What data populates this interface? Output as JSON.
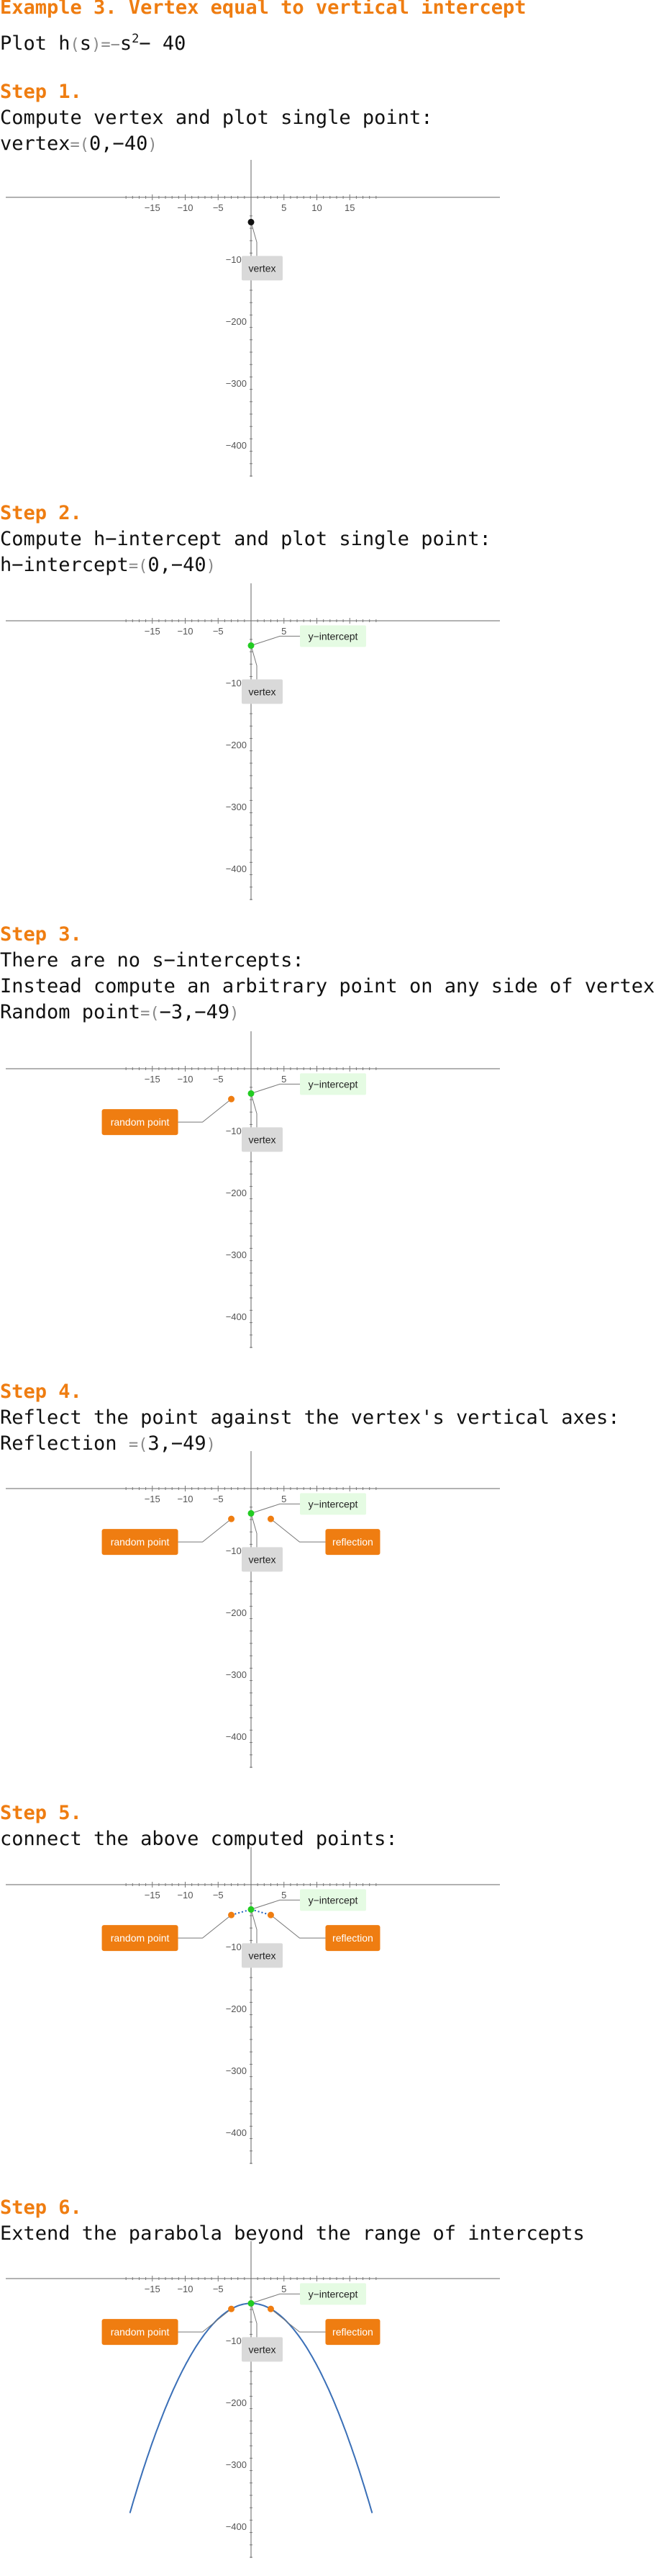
{
  "title": "Example 3. Vertex equal to vertical intercept",
  "intro": {
    "prefix": "Plot h",
    "open": "(",
    "var": "s",
    "close": ")",
    "eq": "=",
    "minus": "−",
    "base": "s",
    "exp": "2",
    "rest": "− 40"
  },
  "steps": [
    {
      "heading": "Step 1.",
      "lines": [
        "Compute vertex and plot single point:"
      ],
      "result": {
        "label": "vertex",
        "eq": "=",
        "open": "(",
        "body": "0,−40",
        "close": ")"
      }
    },
    {
      "heading": "Step 2.",
      "lines": [
        "Compute h−intercept and plot single point:"
      ],
      "result": {
        "label": "h−intercept",
        "eq": "=",
        "open": "(",
        "body": "0,−40",
        "close": ")"
      }
    },
    {
      "heading": "Step 3.",
      "lines": [
        "There are no s−intercepts:",
        "Instead compute an arbitrary point on any side of vertex:"
      ],
      "result": {
        "label": "Random point",
        "eq": "=",
        "open": "(",
        "body": "−3,−49",
        "close": ")"
      }
    },
    {
      "heading": "Step 4.",
      "lines": [
        "Reflect the point against the vertex's vertical axes:"
      ],
      "result": {
        "label": "Reflection ",
        "eq": "=",
        "open": "(",
        "body": "3,−49",
        "close": ")"
      }
    },
    {
      "heading": "Step 5.",
      "lines": [
        "connect the above computed points:"
      ],
      "result": null
    },
    {
      "heading": "Step 6.",
      "lines": [
        "Extend the parabola beyond the range of intercepts"
      ],
      "result": null
    }
  ],
  "chart_data": [
    {
      "type": "scatter",
      "step": 1,
      "x_ticks": [
        -15,
        -10,
        -5,
        5,
        10,
        15
      ],
      "y_ticks": [
        -100,
        -200,
        -300,
        -400
      ],
      "points": [
        {
          "name": "vertex",
          "x": 0,
          "y": -40,
          "color": "#111111",
          "label": "vertex"
        }
      ],
      "labels": [
        {
          "text": "vertex",
          "style": "gray"
        }
      ],
      "segments": [],
      "curve": false
    },
    {
      "type": "scatter",
      "step": 2,
      "x_ticks": [
        -15,
        -10,
        -5,
        5,
        10,
        15
      ],
      "y_ticks": [
        -100,
        -200,
        -300,
        -400
      ],
      "points": [
        {
          "name": "vertex",
          "x": 0,
          "y": -40,
          "color": "#22cc22"
        }
      ],
      "labels": [
        {
          "text": "y−intercept",
          "style": "green"
        },
        {
          "text": "vertex",
          "style": "gray"
        }
      ],
      "segments": [],
      "curve": false
    },
    {
      "type": "scatter",
      "step": 3,
      "x_ticks": [
        -15,
        -10,
        -5,
        5,
        10,
        15
      ],
      "y_ticks": [
        -100,
        -200,
        -300,
        -400
      ],
      "points": [
        {
          "name": "vertex",
          "x": 0,
          "y": -40,
          "color": "#22cc22"
        },
        {
          "name": "random-point",
          "x": -3,
          "y": -49,
          "color": "#ef7d11"
        }
      ],
      "labels": [
        {
          "text": "y−intercept",
          "style": "green"
        },
        {
          "text": "vertex",
          "style": "gray"
        },
        {
          "text": "random point",
          "style": "orange"
        }
      ],
      "segments": [],
      "curve": false
    },
    {
      "type": "scatter",
      "step": 4,
      "x_ticks": [
        -15,
        -10,
        -5,
        5,
        10,
        15
      ],
      "y_ticks": [
        -100,
        -200,
        -300,
        -400
      ],
      "points": [
        {
          "name": "vertex",
          "x": 0,
          "y": -40,
          "color": "#22cc22"
        },
        {
          "name": "random-point",
          "x": -3,
          "y": -49,
          "color": "#ef7d11"
        },
        {
          "name": "reflection",
          "x": 3,
          "y": -49,
          "color": "#ef7d11"
        }
      ],
      "labels": [
        {
          "text": "y−intercept",
          "style": "green"
        },
        {
          "text": "vertex",
          "style": "gray"
        },
        {
          "text": "random point",
          "style": "orange"
        },
        {
          "text": "reflection",
          "style": "orange"
        }
      ],
      "segments": [],
      "curve": false
    },
    {
      "type": "line",
      "step": 5,
      "x_ticks": [
        -15,
        -10,
        -5,
        5,
        10,
        15
      ],
      "y_ticks": [
        -100,
        -200,
        -300,
        -400
      ],
      "points": [
        {
          "name": "vertex",
          "x": 0,
          "y": -40,
          "color": "#22cc22"
        },
        {
          "name": "random-point",
          "x": -3,
          "y": -49,
          "color": "#ef7d11"
        },
        {
          "name": "reflection",
          "x": 3,
          "y": -49,
          "color": "#ef7d11"
        }
      ],
      "labels": [
        {
          "text": "y−intercept",
          "style": "green"
        },
        {
          "text": "vertex",
          "style": "gray"
        },
        {
          "text": "random point",
          "style": "orange"
        },
        {
          "text": "reflection",
          "style": "orange"
        }
      ],
      "segments": [
        {
          "from": [
            -3,
            -49
          ],
          "to": [
            0,
            -40
          ]
        },
        {
          "from": [
            0,
            -40
          ],
          "to": [
            3,
            -49
          ]
        }
      ],
      "segment_style": "dotted",
      "curve": false
    },
    {
      "type": "line",
      "step": 6,
      "function": "h(s) = -s^2 - 40",
      "domain": [
        -18.4,
        18.4
      ],
      "x_ticks": [
        -15,
        -10,
        -5,
        5,
        10,
        15
      ],
      "y_ticks": [
        -100,
        -200,
        -300,
        -400
      ],
      "points": [
        {
          "name": "vertex",
          "x": 0,
          "y": -40,
          "color": "#22cc22"
        },
        {
          "name": "random-point",
          "x": -3,
          "y": -49,
          "color": "#ef7d11"
        },
        {
          "name": "reflection",
          "x": 3,
          "y": -49,
          "color": "#ef7d11"
        }
      ],
      "labels": [
        {
          "text": "y−intercept",
          "style": "green"
        },
        {
          "text": "vertex",
          "style": "gray"
        },
        {
          "text": "random point",
          "style": "orange"
        },
        {
          "text": "reflection",
          "style": "orange"
        }
      ],
      "segments": [],
      "curve": true,
      "curve_color": "#3a6fb7"
    }
  ],
  "colors": {
    "accent": "#ef7d11",
    "green_point": "#22cc22",
    "curve": "#3a6fb7",
    "label_gray": "#d9d9d9",
    "label_green": "#e5fbe3"
  }
}
